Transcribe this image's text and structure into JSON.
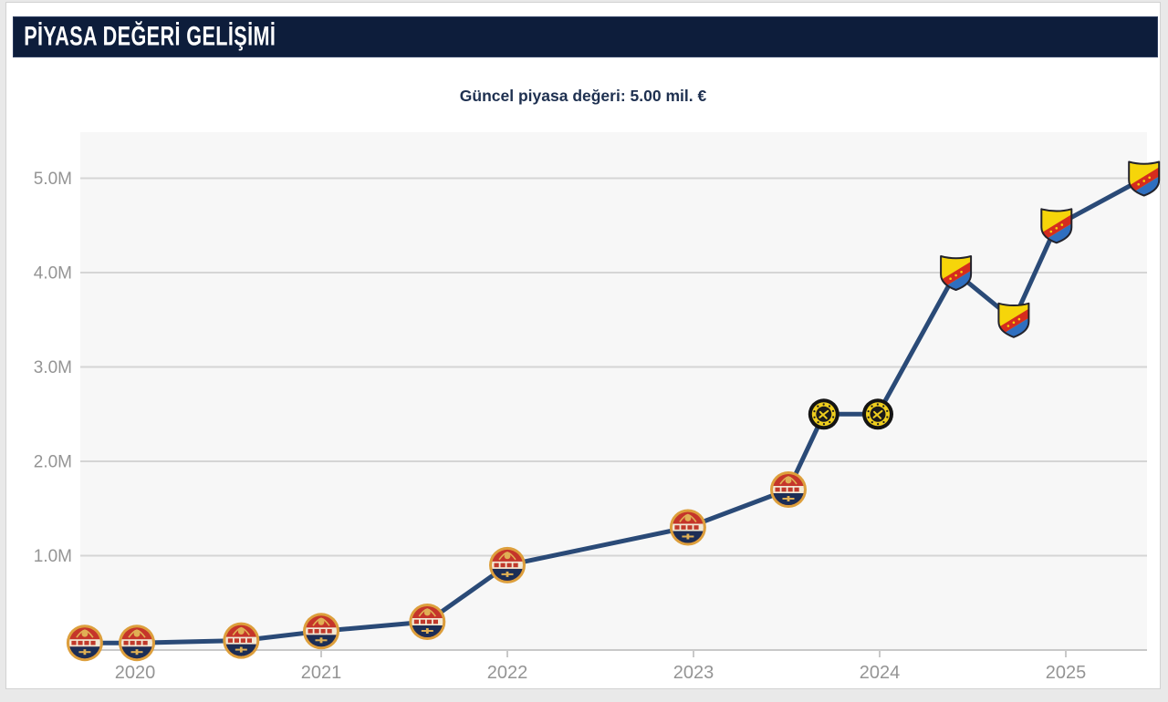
{
  "page": {
    "bg": "#e9e9e9",
    "card_bg": "#ffffff",
    "card_border": "#d2d2d2"
  },
  "header": {
    "title": "PİYASA DEĞERİ GELİŞİMİ",
    "bg_color": "#0d1d3b",
    "text_color": "#ffffff"
  },
  "subtitle": {
    "text": "Güncel piyasa değeri: 5.00 mil. €",
    "color": "#1e3050"
  },
  "chart_data": {
    "type": "line",
    "title": "Güncel piyasa değeri: 5.00 mil. €",
    "xlabel": "",
    "ylabel": "",
    "unit": "mil. €",
    "x_ticks": [
      2020,
      2021,
      2022,
      2023,
      2024,
      2025
    ],
    "y_tick_labels": [
      "1.0M",
      "2.0M",
      "3.0M",
      "4.0M",
      "5.0M"
    ],
    "y_tick_values": [
      1,
      2,
      3,
      4,
      5
    ],
    "xlim": [
      2019.65,
      2025.55
    ],
    "ylim": [
      0,
      5.5
    ],
    "grid": "horizontal",
    "legend": "none",
    "line_color": "#2a4a77",
    "plot_bg": "#f7f7f7",
    "grid_color": "#d5d5d5",
    "axis_color": "#c9c9c9",
    "tick_label_color": "#949494",
    "series": [
      {
        "name": "Piyasa değeri",
        "points": [
          {
            "t": 2019.73,
            "value": 0.075,
            "crest": "red_navy_circle"
          },
          {
            "t": 2020.01,
            "value": 0.075,
            "crest": "red_navy_circle"
          },
          {
            "t": 2020.57,
            "value": 0.1,
            "crest": "red_navy_circle"
          },
          {
            "t": 2021.0,
            "value": 0.2,
            "crest": "red_navy_circle"
          },
          {
            "t": 2021.57,
            "value": 0.3,
            "crest": "red_navy_circle"
          },
          {
            "t": 2022.0,
            "value": 0.9,
            "crest": "red_navy_circle"
          },
          {
            "t": 2022.97,
            "value": 1.3,
            "crest": "red_navy_circle"
          },
          {
            "t": 2023.51,
            "value": 1.7,
            "crest": "red_navy_circle"
          },
          {
            "t": 2023.7,
            "value": 2.5,
            "crest": "yellow_black_circle"
          },
          {
            "t": 2023.99,
            "value": 2.5,
            "crest": "yellow_black_circle"
          },
          {
            "t": 2024.41,
            "value": 4.0,
            "crest": "yellow_red_blue_shield"
          },
          {
            "t": 2024.72,
            "value": 3.5,
            "crest": "yellow_red_blue_shield"
          },
          {
            "t": 2024.95,
            "value": 4.5,
            "crest": "yellow_red_blue_shield"
          },
          {
            "t": 2025.42,
            "value": 5.0,
            "crest": "yellow_red_blue_shield"
          }
        ]
      }
    ],
    "crests": {
      "red_navy_circle": {
        "ring": "#dd9f3c",
        "top": "#c5352a",
        "band": "#f2e9d4",
        "band_text": "#c0392b",
        "bottom": "#1c2e56",
        "emblem": "#e0b054"
      },
      "yellow_black_circle": {
        "outer": "#141414",
        "ring": "#eecd1d",
        "core": "#1b1b1b",
        "detail": "#eecd1d"
      },
      "yellow_red_blue_shield": {
        "body": "#f6d50a",
        "band": "#d52c1e",
        "lower": "#2f6fc0",
        "outline": "#23232c",
        "band_text": "#f6d50a"
      }
    }
  }
}
